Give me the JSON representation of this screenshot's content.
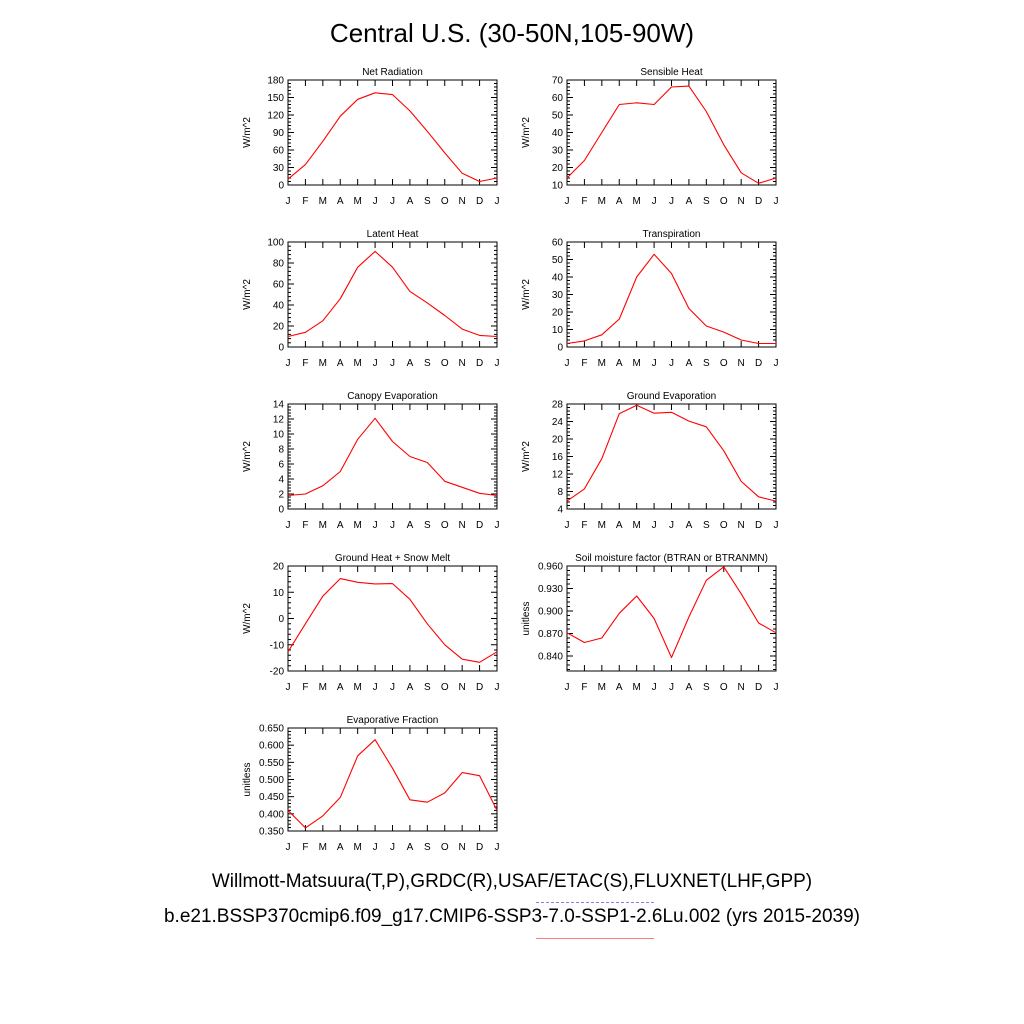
{
  "page": {
    "title": "Central U.S. (30-50N,105-90W)",
    "caption_line1": "Willmott-Matsuura(T,P),GRDC(R),USAF/ETAC(S),FLUXNET(LHF,GPP)",
    "caption_line2": "b.e21.BSSP370cmip6.f09_g17.CMIP6-SSP3-7.0-SSP1-2.6Lu.002 (yrs 2015-2039)"
  },
  "colors": {
    "series": "#ff0000",
    "axis": "#000000",
    "underline_blue": "#8080e0",
    "underline_red": "#f08080"
  },
  "chart_data": [
    {
      "type": "line",
      "title": "Net Radiation",
      "ylabel": "W/m^2",
      "categories": [
        "J",
        "F",
        "M",
        "A",
        "M",
        "J",
        "J",
        "A",
        "S",
        "O",
        "N",
        "D",
        "J"
      ],
      "values": [
        10,
        35,
        75,
        118,
        147,
        158,
        155,
        127,
        92,
        55,
        20,
        6,
        12
      ],
      "ylim": [
        0,
        180
      ],
      "yticks": [
        0,
        30,
        60,
        90,
        120,
        150,
        180
      ],
      "ytick_labels": [
        "0",
        "30",
        "60",
        "90",
        "120",
        "150",
        "180"
      ]
    },
    {
      "type": "line",
      "title": "Sensible Heat",
      "ylabel": "W/m^2",
      "categories": [
        "J",
        "F",
        "M",
        "A",
        "M",
        "J",
        "J",
        "A",
        "S",
        "O",
        "N",
        "D",
        "J"
      ],
      "values": [
        14,
        24,
        40,
        56,
        57,
        56,
        66,
        66.5,
        52,
        33,
        17,
        11,
        14
      ],
      "ylim": [
        10,
        70
      ],
      "yticks": [
        10,
        20,
        30,
        40,
        50,
        60,
        70
      ],
      "ytick_labels": [
        "10",
        "20",
        "30",
        "40",
        "50",
        "60",
        "70"
      ]
    },
    {
      "type": "line",
      "title": "Latent Heat",
      "ylabel": "W/m^2",
      "categories": [
        "J",
        "F",
        "M",
        "A",
        "M",
        "J",
        "J",
        "A",
        "S",
        "O",
        "N",
        "D",
        "J"
      ],
      "values": [
        10,
        14,
        25,
        46,
        76,
        91,
        76,
        53,
        42,
        30,
        17,
        11,
        10
      ],
      "ylim": [
        0,
        100
      ],
      "yticks": [
        0,
        20,
        40,
        60,
        80,
        100
      ],
      "ytick_labels": [
        "0",
        "20",
        "40",
        "60",
        "80",
        "100"
      ]
    },
    {
      "type": "line",
      "title": "Transpiration",
      "ylabel": "W/m^2",
      "categories": [
        "J",
        "F",
        "M",
        "A",
        "M",
        "J",
        "J",
        "A",
        "S",
        "O",
        "N",
        "D",
        "J"
      ],
      "values": [
        2,
        3.5,
        7,
        16,
        40,
        53,
        42,
        22,
        12,
        8.5,
        4,
        2,
        2
      ],
      "ylim": [
        0,
        60
      ],
      "yticks": [
        0,
        10,
        20,
        30,
        40,
        50,
        60
      ],
      "ytick_labels": [
        "0",
        "10",
        "20",
        "30",
        "40",
        "50",
        "60"
      ]
    },
    {
      "type": "line",
      "title": "Canopy Evaporation",
      "ylabel": "W/m^2",
      "categories": [
        "J",
        "F",
        "M",
        "A",
        "M",
        "J",
        "J",
        "A",
        "S",
        "O",
        "N",
        "D",
        "J"
      ],
      "values": [
        1.8,
        2.0,
        3.1,
        5.0,
        9.3,
        12.1,
        9.0,
        7.0,
        6.2,
        3.7,
        2.9,
        2.1,
        1.8
      ],
      "ylim": [
        0,
        14
      ],
      "yticks": [
        0,
        2,
        4,
        6,
        8,
        10,
        12,
        14
      ],
      "ytick_labels": [
        "0",
        "2",
        "4",
        "6",
        "8",
        "10",
        "12",
        "14"
      ]
    },
    {
      "type": "line",
      "title": "Ground Evaporation",
      "ylabel": "W/m^2",
      "categories": [
        "J",
        "F",
        "M",
        "A",
        "M",
        "J",
        "J",
        "A",
        "S",
        "O",
        "N",
        "D",
        "J"
      ],
      "values": [
        5.8,
        8.6,
        15.5,
        25.8,
        27.7,
        25.9,
        26.1,
        24.1,
        22.8,
        17.3,
        10.3,
        6.8,
        5.8
      ],
      "ylim": [
        4,
        28
      ],
      "yticks": [
        4,
        8,
        12,
        16,
        20,
        24,
        28
      ],
      "ytick_labels": [
        "4",
        "8",
        "12",
        "16",
        "20",
        "24",
        "28"
      ]
    },
    {
      "type": "line",
      "title": "Ground Heat + Snow Melt",
      "ylabel": "W/m^2",
      "categories": [
        "J",
        "F",
        "M",
        "A",
        "M",
        "J",
        "J",
        "A",
        "S",
        "O",
        "N",
        "D",
        "J"
      ],
      "values": [
        -12.7,
        -2,
        8.5,
        15.2,
        13.8,
        13.2,
        13.3,
        7.3,
        -2,
        -10,
        -15.5,
        -16.7,
        -12.7
      ],
      "ylim": [
        -20,
        20
      ],
      "yticks": [
        -20,
        -10,
        0,
        10,
        20
      ],
      "ytick_labels": [
        "-20",
        "-10",
        "0",
        "10",
        "20"
      ]
    },
    {
      "type": "line",
      "title": "Soil moisture factor (BTRAN or BTRANMN)",
      "ylabel": "unitless",
      "categories": [
        "J",
        "F",
        "M",
        "A",
        "M",
        "J",
        "J",
        "A",
        "S",
        "O",
        "N",
        "D",
        "J"
      ],
      "values": [
        0.871,
        0.858,
        0.864,
        0.897,
        0.92,
        0.89,
        0.838,
        0.892,
        0.941,
        0.959,
        0.923,
        0.884,
        0.871
      ],
      "ylim": [
        0.82,
        0.96
      ],
      "yticks": [
        0.84,
        0.87,
        0.9,
        0.93,
        0.96
      ],
      "ytick_labels": [
        "0.840",
        "0.870",
        "0.900",
        "0.930",
        "0.960"
      ]
    },
    {
      "type": "line",
      "title": "Evaporative Fraction",
      "ylabel": "unitless",
      "categories": [
        "J",
        "F",
        "M",
        "A",
        "M",
        "J",
        "J",
        "A",
        "S",
        "O",
        "N",
        "D",
        "J"
      ],
      "values": [
        0.41,
        0.359,
        0.394,
        0.448,
        0.569,
        0.616,
        0.533,
        0.441,
        0.434,
        0.461,
        0.52,
        0.511,
        0.41
      ],
      "ylim": [
        0.35,
        0.65
      ],
      "yticks": [
        0.35,
        0.4,
        0.45,
        0.5,
        0.55,
        0.6,
        0.65
      ],
      "ytick_labels": [
        "0.350",
        "0.400",
        "0.450",
        "0.500",
        "0.550",
        "0.600",
        "0.650"
      ]
    }
  ]
}
